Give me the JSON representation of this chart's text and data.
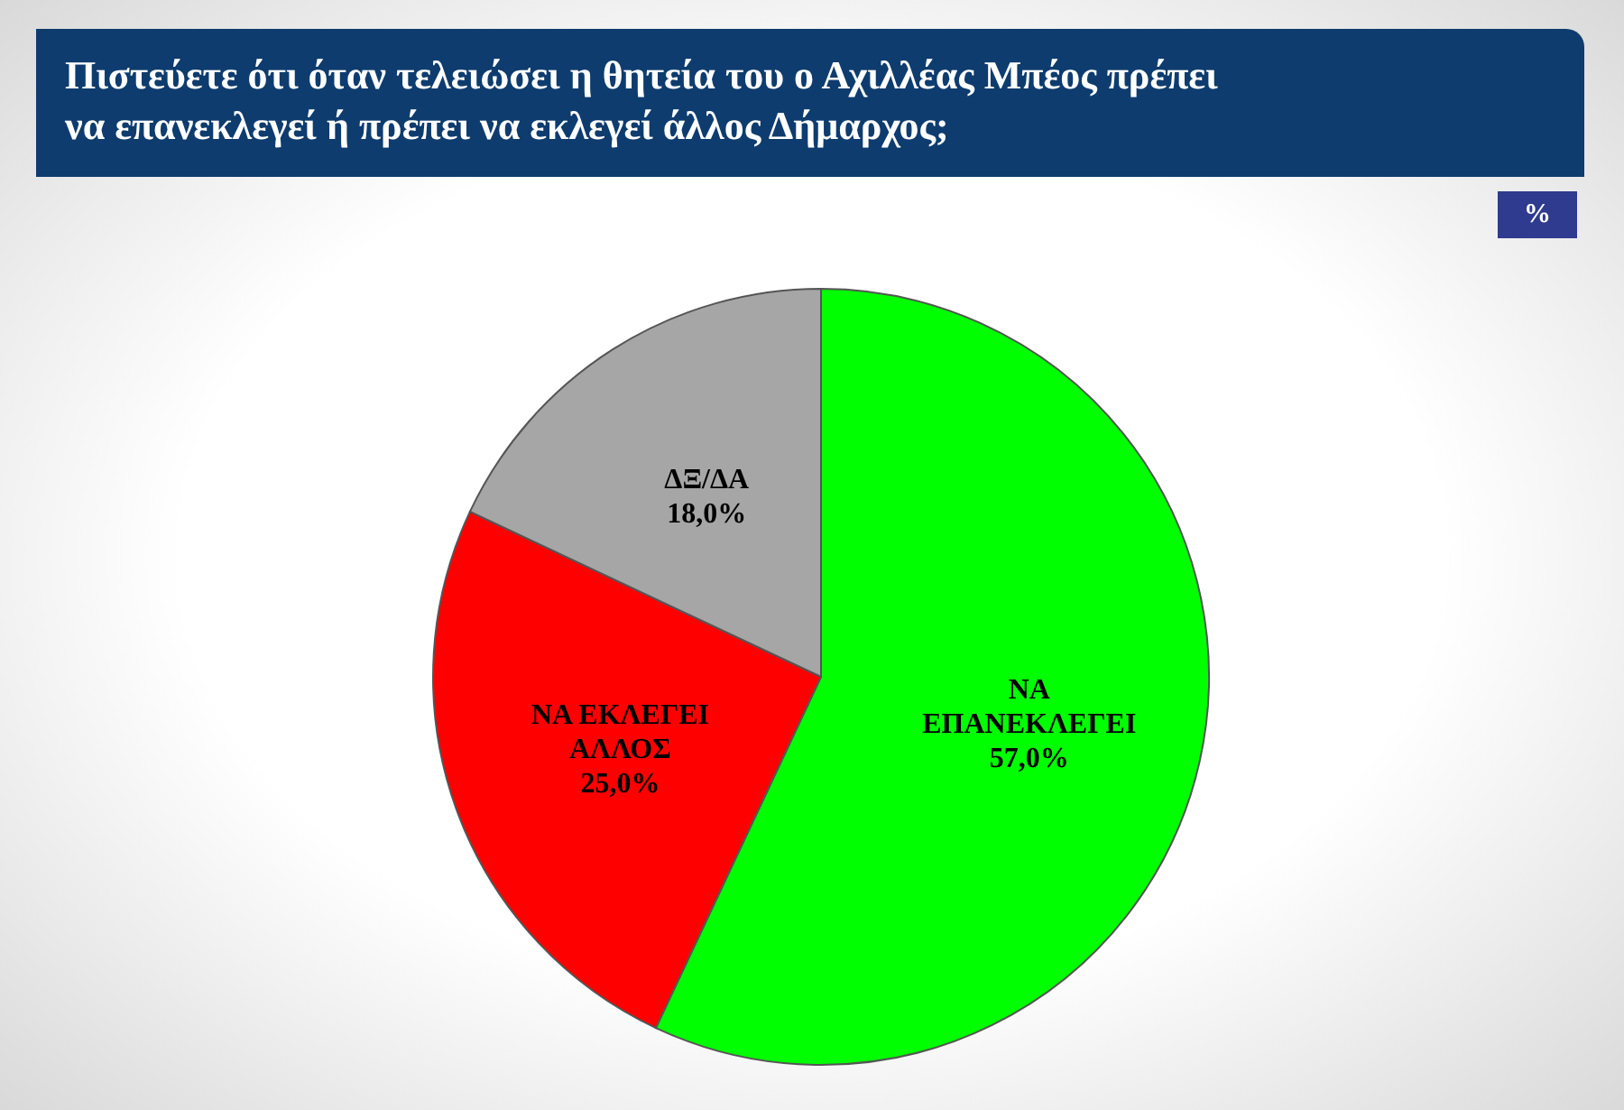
{
  "chart_data": {
    "type": "pie",
    "title": "Πιστεύετε ότι όταν τελειώσει η θητεία του ο Αχιλλέας Μπέος πρέπει να επανεκλεγεί ή πρέπει να εκλεγεί άλλος Δήμαρχος;",
    "categories": [
      "ΝΑ ΕΠΑΝΕΚΛΕΓΕΙ",
      "ΝΑ ΕΚΛΕΓΕΙ ΑΛΛΟΣ",
      "ΔΞ/ΔΑ"
    ],
    "values": [
      57,
      25,
      18
    ],
    "colors": [
      "#00ff00",
      "#ff0000",
      "#a6a6a6"
    ],
    "value_labels": [
      "57,0%",
      "25,0%",
      "18,0%"
    ],
    "annotations": [
      "%"
    ]
  }
}
